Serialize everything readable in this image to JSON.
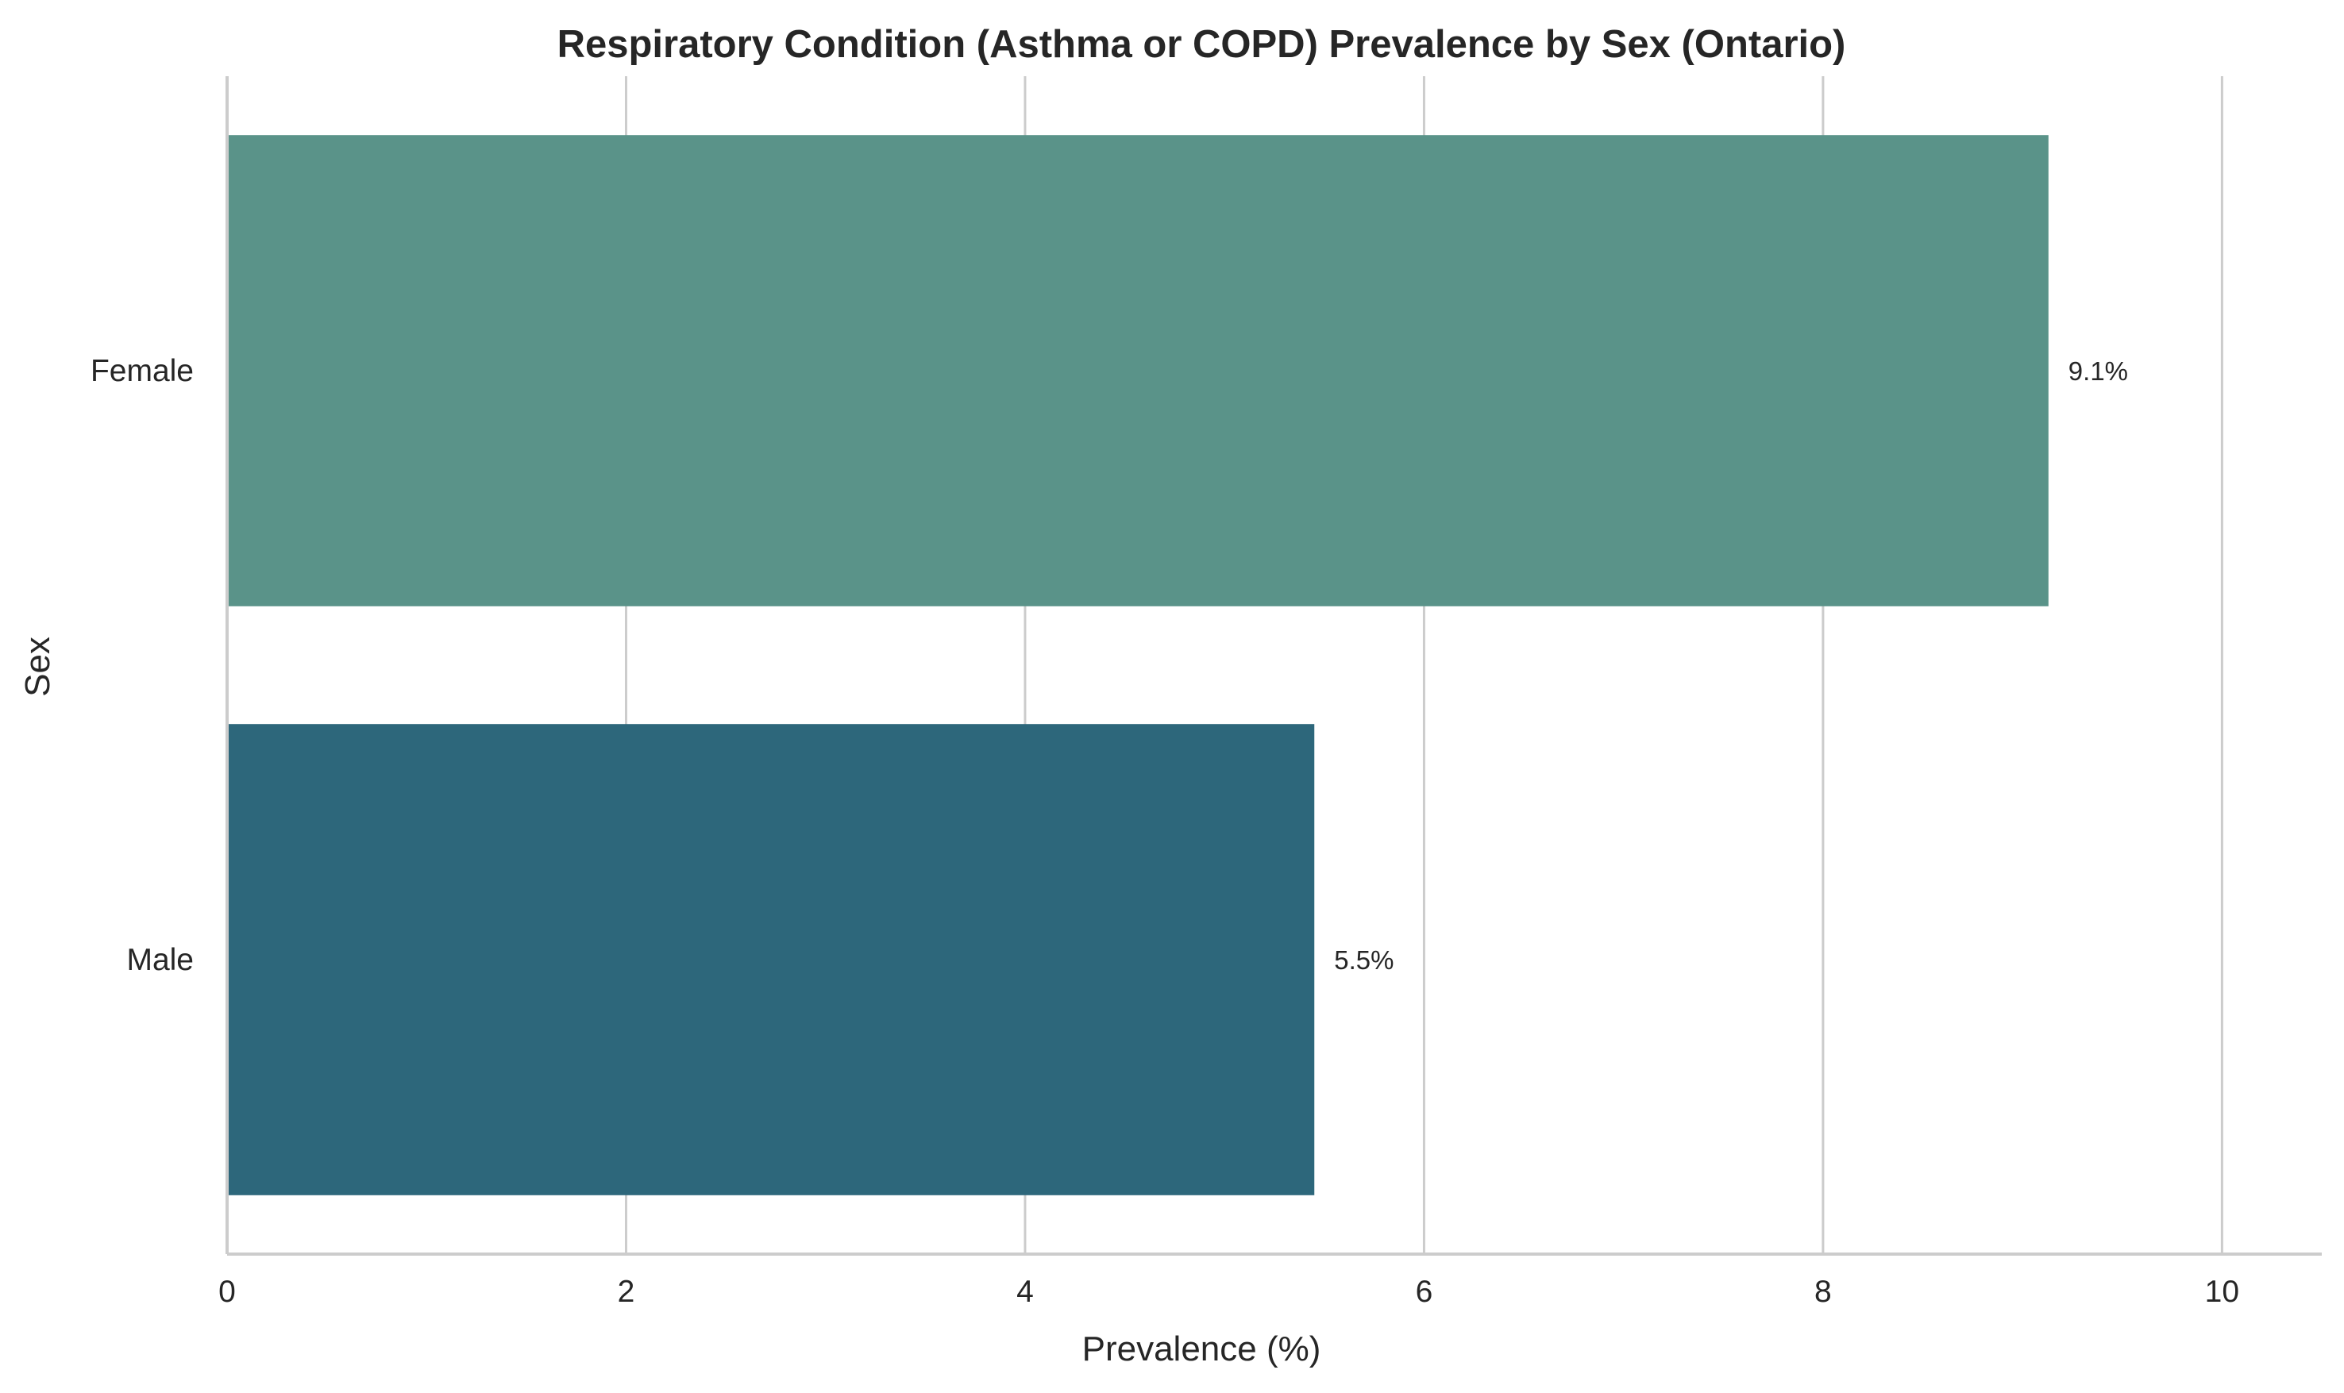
{
  "chart_data": {
    "type": "bar",
    "orientation": "horizontal",
    "title": "Respiratory Condition (Asthma or COPD) Prevalence by Sex (Ontario)",
    "xlabel": "Prevalence (%)",
    "ylabel": "Sex",
    "categories": [
      "Female",
      "Male"
    ],
    "values": [
      9.13,
      5.45
    ],
    "data_labels": [
      "9.1%",
      "5.5%"
    ],
    "colors": [
      "#5a9389",
      "#2d677b"
    ],
    "xlim": [
      0,
      10.5
    ],
    "xticks": [
      0,
      2,
      4,
      6,
      8,
      10
    ],
    "xtick_labels": [
      "0",
      "2",
      "4",
      "6",
      "8",
      "10"
    ],
    "grid": true,
    "legend": "none"
  }
}
